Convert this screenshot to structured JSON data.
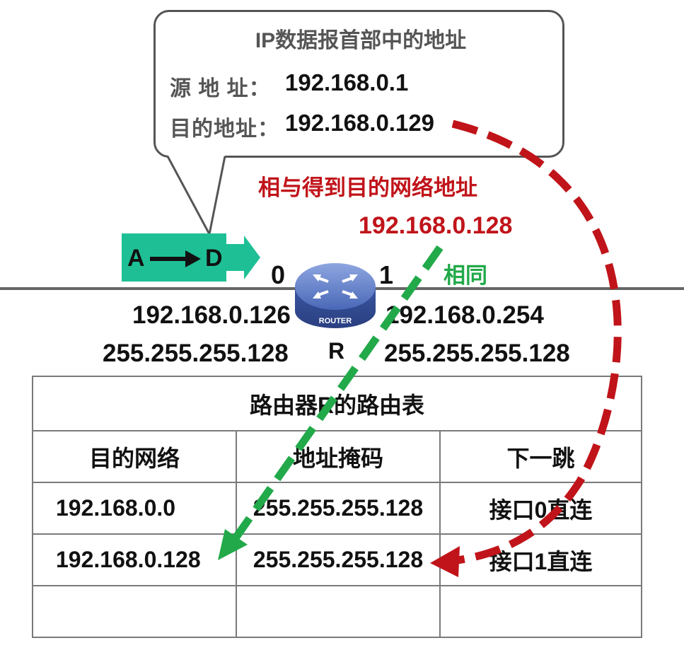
{
  "bubble": {
    "title": "IP数据报首部中的地址",
    "src_label": "源 地 址：",
    "src_value": "192.168.0.1",
    "dst_label": "目的地址：",
    "dst_value": "192.168.0.129"
  },
  "annotation": {
    "and_text": "相与得到目的网络地址",
    "network_address": "192.168.0.128",
    "same_text": "相同"
  },
  "packet": {
    "src": "A",
    "dst": "D"
  },
  "router": {
    "name": "R",
    "icon_text": "ROUTER",
    "port0_label": "0",
    "port1_label": "1",
    "port0_ip": "192.168.0.126",
    "port0_mask": "255.255.255.128",
    "port1_ip": "192.168.0.254",
    "port1_mask": "255.255.255.128"
  },
  "routing_table": {
    "title": "路由器R的路由表",
    "headers": [
      "目的网络",
      "地址掩码",
      "下一跳"
    ],
    "rows": [
      [
        "192.168.0.0",
        "255.255.255.128",
        "接口0直连"
      ],
      [
        "192.168.0.128",
        "255.255.255.128",
        "接口1直连"
      ],
      [
        "",
        "",
        ""
      ]
    ]
  },
  "colors": {
    "red_arrow": "#c0141a",
    "green_arrow": "#22a94a",
    "packet": "#1fbf96",
    "router": "#3d5aa8"
  }
}
